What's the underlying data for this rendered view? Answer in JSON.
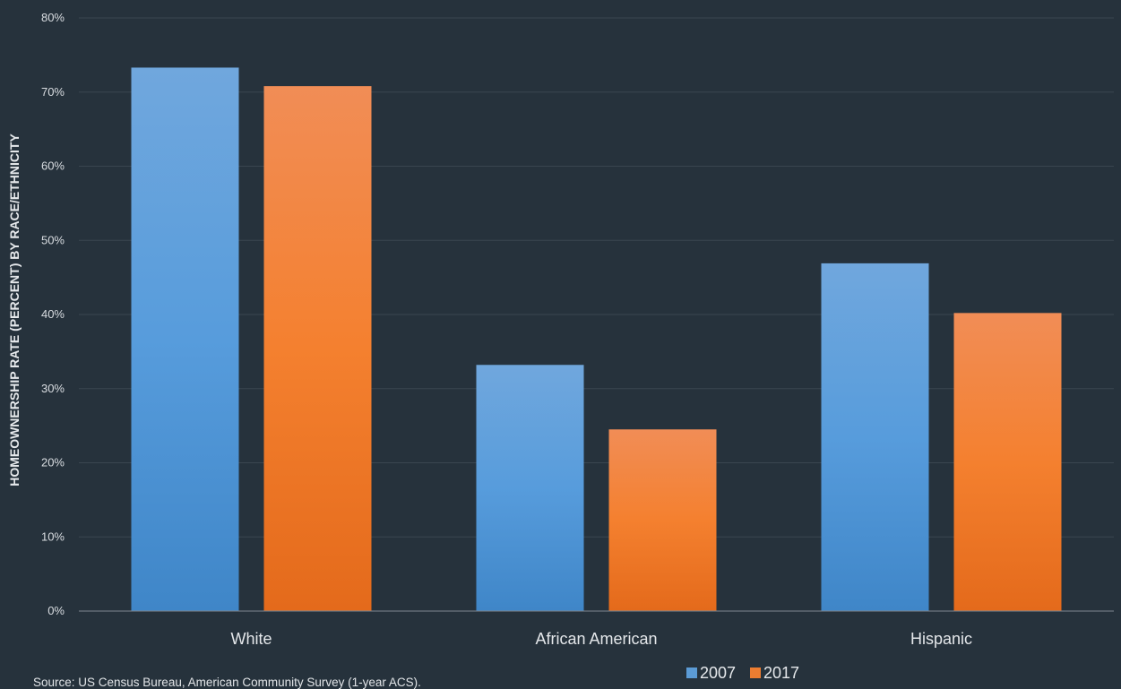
{
  "chart_data": {
    "type": "bar",
    "categories": [
      "White",
      "African American",
      "Hispanic"
    ],
    "series": [
      {
        "name": "2007",
        "values": [
          73.3,
          33.2,
          46.9
        ],
        "color": "#5b9bd5"
      },
      {
        "name": "2017",
        "values": [
          70.8,
          24.5,
          40.2
        ],
        "color": "#ed7d31"
      }
    ],
    "ylabel": "HOMEOWNERSHIP RATE (PERCENT) BY RACE/ETHNICITY",
    "ylim": [
      0,
      80
    ],
    "yticks": [
      0,
      10,
      20,
      30,
      40,
      50,
      60,
      70,
      80
    ],
    "ytick_labels": [
      "0%",
      "10%",
      "20%",
      "30%",
      "40%",
      "50%",
      "60%",
      "70%",
      "80%"
    ],
    "grid": true,
    "legend": "bottom",
    "source": "Source: US Census Bureau, American Community Survey (1-year ACS)."
  }
}
